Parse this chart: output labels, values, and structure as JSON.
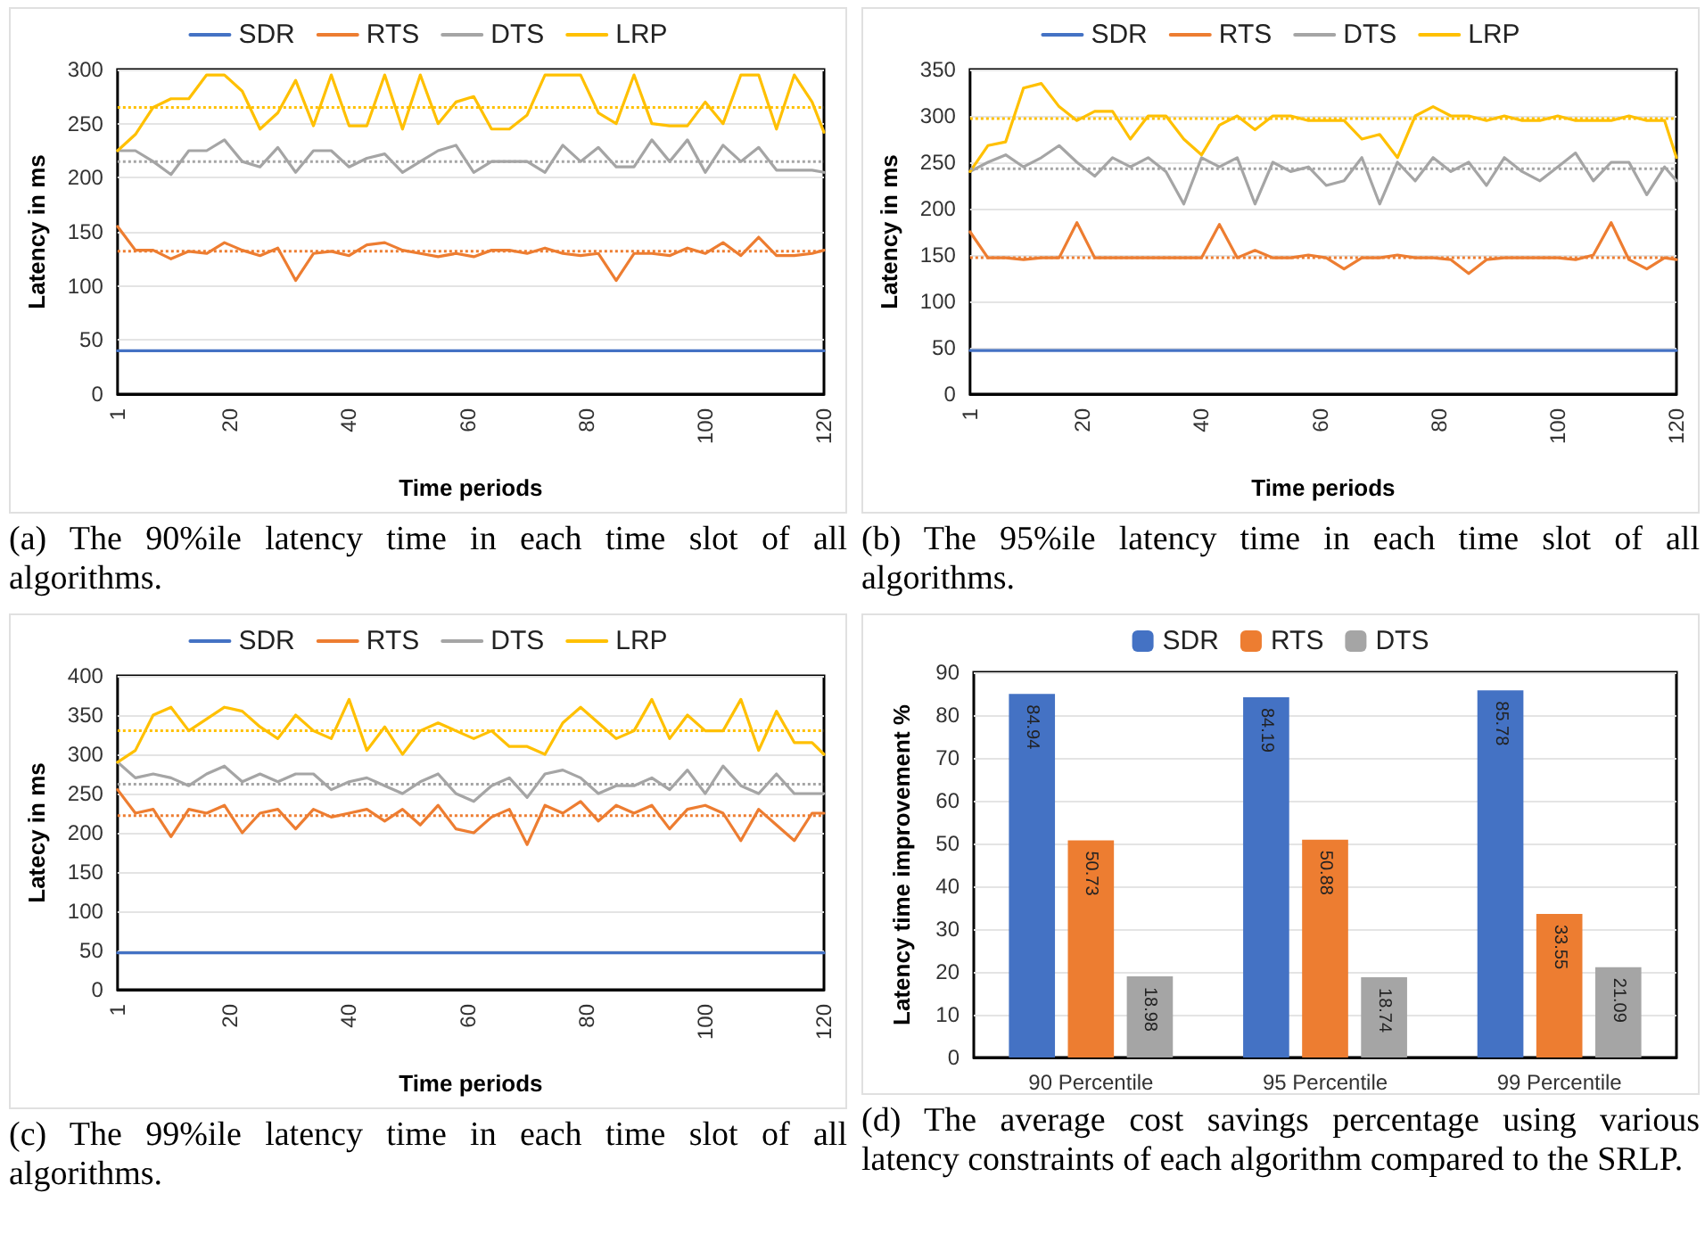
{
  "chart_data": [
    {
      "type": "line",
      "xlabel": "Time periods",
      "ylabel": "Latency in ms",
      "xlim": [
        1,
        120
      ],
      "xticks": [
        1,
        20,
        40,
        60,
        80,
        100,
        120
      ],
      "ylim": [
        0,
        300
      ],
      "yticks": [
        0,
        50,
        100,
        150,
        200,
        250,
        300
      ],
      "grid": "y",
      "legend": "top",
      "marker": "none",
      "line_style": "solid",
      "x": [
        1,
        4,
        7,
        10,
        13,
        16,
        19,
        22,
        25,
        28,
        31,
        34,
        37,
        40,
        43,
        46,
        49,
        52,
        55,
        58,
        61,
        64,
        67,
        70,
        73,
        76,
        79,
        82,
        85,
        88,
        91,
        94,
        97,
        100,
        103,
        106,
        109,
        112,
        115,
        118,
        120
      ],
      "series": [
        {
          "name": "SDR",
          "color": "#4472c4",
          "values": [
            40,
            40,
            40,
            40,
            40,
            40,
            40,
            40,
            40,
            40,
            40,
            40,
            40,
            40,
            40,
            40,
            40,
            40,
            40,
            40,
            40,
            40,
            40,
            40,
            40,
            40,
            40,
            40,
            40,
            40,
            40,
            40,
            40,
            40,
            40,
            40,
            40,
            40,
            40,
            40,
            40
          ]
        },
        {
          "name": "RTS",
          "color": "#ed7d31",
          "values": [
            155,
            133,
            133,
            125,
            132,
            130,
            140,
            133,
            128,
            135,
            105,
            130,
            132,
            128,
            138,
            140,
            133,
            130,
            127,
            130,
            127,
            133,
            133,
            130,
            135,
            130,
            128,
            130,
            105,
            130,
            130,
            128,
            135,
            130,
            140,
            128,
            145,
            128,
            128,
            130,
            133
          ]
        },
        {
          "name": "DTS",
          "color": "#a5a5a5",
          "values": [
            225,
            225,
            215,
            203,
            225,
            225,
            235,
            215,
            210,
            228,
            205,
            225,
            225,
            210,
            218,
            222,
            205,
            215,
            225,
            230,
            205,
            215,
            215,
            215,
            205,
            230,
            215,
            228,
            210,
            210,
            235,
            215,
            235,
            205,
            230,
            215,
            228,
            207,
            207,
            207,
            205
          ]
        },
        {
          "name": "LRP",
          "color": "#ffc000",
          "values": [
            225,
            240,
            265,
            273,
            273,
            295,
            295,
            280,
            245,
            260,
            290,
            248,
            295,
            248,
            248,
            295,
            245,
            295,
            250,
            270,
            275,
            245,
            245,
            258,
            295,
            295,
            295,
            260,
            250,
            295,
            250,
            248,
            248,
            270,
            250,
            295,
            295,
            245,
            295,
            270,
            242
          ]
        }
      ],
      "ref_lines": [
        {
          "axis": "y",
          "value": 132,
          "color": "#ed7d31",
          "line_style": "dotted"
        },
        {
          "axis": "y",
          "value": 215,
          "color": "#a5a5a5",
          "line_style": "dotted"
        },
        {
          "axis": "y",
          "value": 265,
          "color": "#ffc000",
          "line_style": "dotted"
        }
      ],
      "annotations": [
        "(a) The 90%ile latency time in each time slot of all algorithms."
      ]
    },
    {
      "type": "line",
      "xlabel": "Time periods",
      "ylabel": "Latency in ms",
      "xlim": [
        1,
        120
      ],
      "xticks": [
        1,
        20,
        40,
        60,
        80,
        100,
        120
      ],
      "ylim": [
        0,
        350
      ],
      "yticks": [
        0,
        50,
        100,
        150,
        200,
        250,
        300,
        350
      ],
      "grid": "y",
      "legend": "top",
      "marker": "none",
      "line_style": "solid",
      "x": [
        1,
        4,
        7,
        10,
        13,
        16,
        19,
        22,
        25,
        28,
        31,
        34,
        37,
        40,
        43,
        46,
        49,
        52,
        55,
        58,
        61,
        64,
        67,
        70,
        73,
        76,
        79,
        82,
        85,
        88,
        91,
        94,
        97,
        100,
        103,
        106,
        109,
        112,
        115,
        118,
        120
      ],
      "series": [
        {
          "name": "SDR",
          "color": "#4472c4",
          "values": [
            47,
            47,
            47,
            47,
            47,
            47,
            47,
            47,
            47,
            47,
            47,
            47,
            47,
            47,
            47,
            47,
            47,
            47,
            47,
            47,
            47,
            47,
            47,
            47,
            47,
            47,
            47,
            47,
            47,
            47,
            47,
            47,
            47,
            47,
            47,
            47,
            47,
            47,
            47,
            47,
            47
          ]
        },
        {
          "name": "RTS",
          "color": "#ed7d31",
          "values": [
            175,
            147,
            147,
            145,
            147,
            147,
            185,
            147,
            147,
            147,
            147,
            147,
            147,
            147,
            183,
            147,
            155,
            147,
            147,
            150,
            147,
            135,
            147,
            147,
            150,
            147,
            147,
            145,
            130,
            145,
            147,
            147,
            147,
            147,
            145,
            150,
            185,
            145,
            135,
            147,
            145
          ]
        },
        {
          "name": "DTS",
          "color": "#a5a5a5",
          "values": [
            240,
            250,
            258,
            245,
            255,
            268,
            250,
            235,
            255,
            245,
            255,
            240,
            205,
            255,
            245,
            255,
            205,
            250,
            240,
            245,
            225,
            230,
            255,
            205,
            250,
            230,
            255,
            240,
            250,
            225,
            255,
            240,
            230,
            245,
            260,
            230,
            250,
            250,
            215,
            245,
            230
          ]
        },
        {
          "name": "LRP",
          "color": "#ffc000",
          "values": [
            240,
            268,
            272,
            330,
            335,
            310,
            295,
            305,
            305,
            275,
            300,
            300,
            275,
            258,
            290,
            300,
            285,
            300,
            300,
            295,
            295,
            295,
            275,
            280,
            255,
            300,
            310,
            300,
            300,
            295,
            300,
            295,
            295,
            300,
            295,
            295,
            295,
            300,
            295,
            295,
            255
          ]
        }
      ],
      "ref_lines": [
        {
          "axis": "y",
          "value": 147,
          "color": "#ed7d31",
          "line_style": "dotted"
        },
        {
          "axis": "y",
          "value": 243,
          "color": "#a5a5a5",
          "line_style": "dotted"
        },
        {
          "axis": "y",
          "value": 297,
          "color": "#ffc000",
          "line_style": "dotted"
        }
      ],
      "annotations": [
        "(b) The 95%ile latency time in each time slot of all algorithms."
      ]
    },
    {
      "type": "line",
      "xlabel": "Time periods",
      "ylabel": "Latecy in ms",
      "xlim": [
        1,
        120
      ],
      "xticks": [
        1,
        20,
        40,
        60,
        80,
        100,
        120
      ],
      "ylim": [
        0,
        400
      ],
      "yticks": [
        0,
        50,
        100,
        150,
        200,
        250,
        300,
        350,
        400
      ],
      "grid": "y",
      "legend": "top",
      "marker": "none",
      "line_style": "solid",
      "x": [
        1,
        4,
        7,
        10,
        13,
        16,
        19,
        22,
        25,
        28,
        31,
        34,
        37,
        40,
        43,
        46,
        49,
        52,
        55,
        58,
        61,
        64,
        67,
        70,
        73,
        76,
        79,
        82,
        85,
        88,
        91,
        94,
        97,
        100,
        103,
        106,
        109,
        112,
        115,
        118,
        120
      ],
      "series": [
        {
          "name": "SDR",
          "color": "#4472c4",
          "values": [
            47,
            47,
            47,
            47,
            47,
            47,
            47,
            47,
            47,
            47,
            47,
            47,
            47,
            47,
            47,
            47,
            47,
            47,
            47,
            47,
            47,
            47,
            47,
            47,
            47,
            47,
            47,
            47,
            47,
            47,
            47,
            47,
            47,
            47,
            47,
            47,
            47,
            47,
            47,
            47,
            47
          ]
        },
        {
          "name": "RTS",
          "color": "#ed7d31",
          "values": [
            255,
            225,
            230,
            195,
            230,
            225,
            235,
            200,
            225,
            230,
            205,
            230,
            220,
            225,
            230,
            215,
            230,
            210,
            235,
            205,
            200,
            220,
            230,
            185,
            235,
            225,
            240,
            215,
            235,
            225,
            235,
            205,
            230,
            235,
            225,
            190,
            230,
            210,
            190,
            225,
            225
          ]
        },
        {
          "name": "DTS",
          "color": "#a5a5a5",
          "values": [
            290,
            270,
            275,
            270,
            260,
            275,
            285,
            265,
            275,
            265,
            275,
            275,
            255,
            265,
            270,
            260,
            250,
            265,
            275,
            250,
            240,
            260,
            270,
            245,
            275,
            280,
            270,
            250,
            260,
            260,
            270,
            255,
            280,
            250,
            285,
            260,
            250,
            275,
            250,
            250,
            250
          ]
        },
        {
          "name": "LRP",
          "color": "#ffc000",
          "values": [
            290,
            305,
            350,
            360,
            330,
            345,
            360,
            355,
            335,
            320,
            350,
            330,
            320,
            370,
            305,
            335,
            300,
            330,
            340,
            330,
            320,
            330,
            310,
            310,
            300,
            340,
            360,
            340,
            320,
            330,
            370,
            320,
            350,
            330,
            330,
            370,
            305,
            355,
            315,
            315,
            300
          ]
        }
      ],
      "ref_lines": [
        {
          "axis": "y",
          "value": 222,
          "color": "#ed7d31",
          "line_style": "dotted"
        },
        {
          "axis": "y",
          "value": 262,
          "color": "#a5a5a5",
          "line_style": "dotted"
        },
        {
          "axis": "y",
          "value": 330,
          "color": "#ffc000",
          "line_style": "dotted"
        }
      ],
      "annotations": [
        "(c) The 99%ile latency time in each time slot of all algorithms."
      ]
    },
    {
      "type": "bar",
      "ylabel": "Latency time improvement %",
      "categories": [
        "90 Percentile",
        "95 Percentile",
        "99 Percentile"
      ],
      "ylim": [
        0,
        90
      ],
      "yticks": [
        0,
        10,
        20,
        30,
        40,
        50,
        60,
        70,
        80,
        90
      ],
      "grid": "y",
      "legend": "top",
      "data_labels": true,
      "series": [
        {
          "name": "SDR",
          "color": "#4472c4",
          "values": [
            84.94,
            84.19,
            85.78
          ]
        },
        {
          "name": "RTS",
          "color": "#ed7d31",
          "values": [
            50.73,
            50.88,
            33.55
          ]
        },
        {
          "name": "DTS",
          "color": "#a5a5a5",
          "values": [
            18.98,
            18.74,
            21.09
          ]
        }
      ],
      "annotations": [
        "(d) The average cost savings percentage using various latency constraints of each algorithm compared to the SRLP."
      ]
    }
  ]
}
